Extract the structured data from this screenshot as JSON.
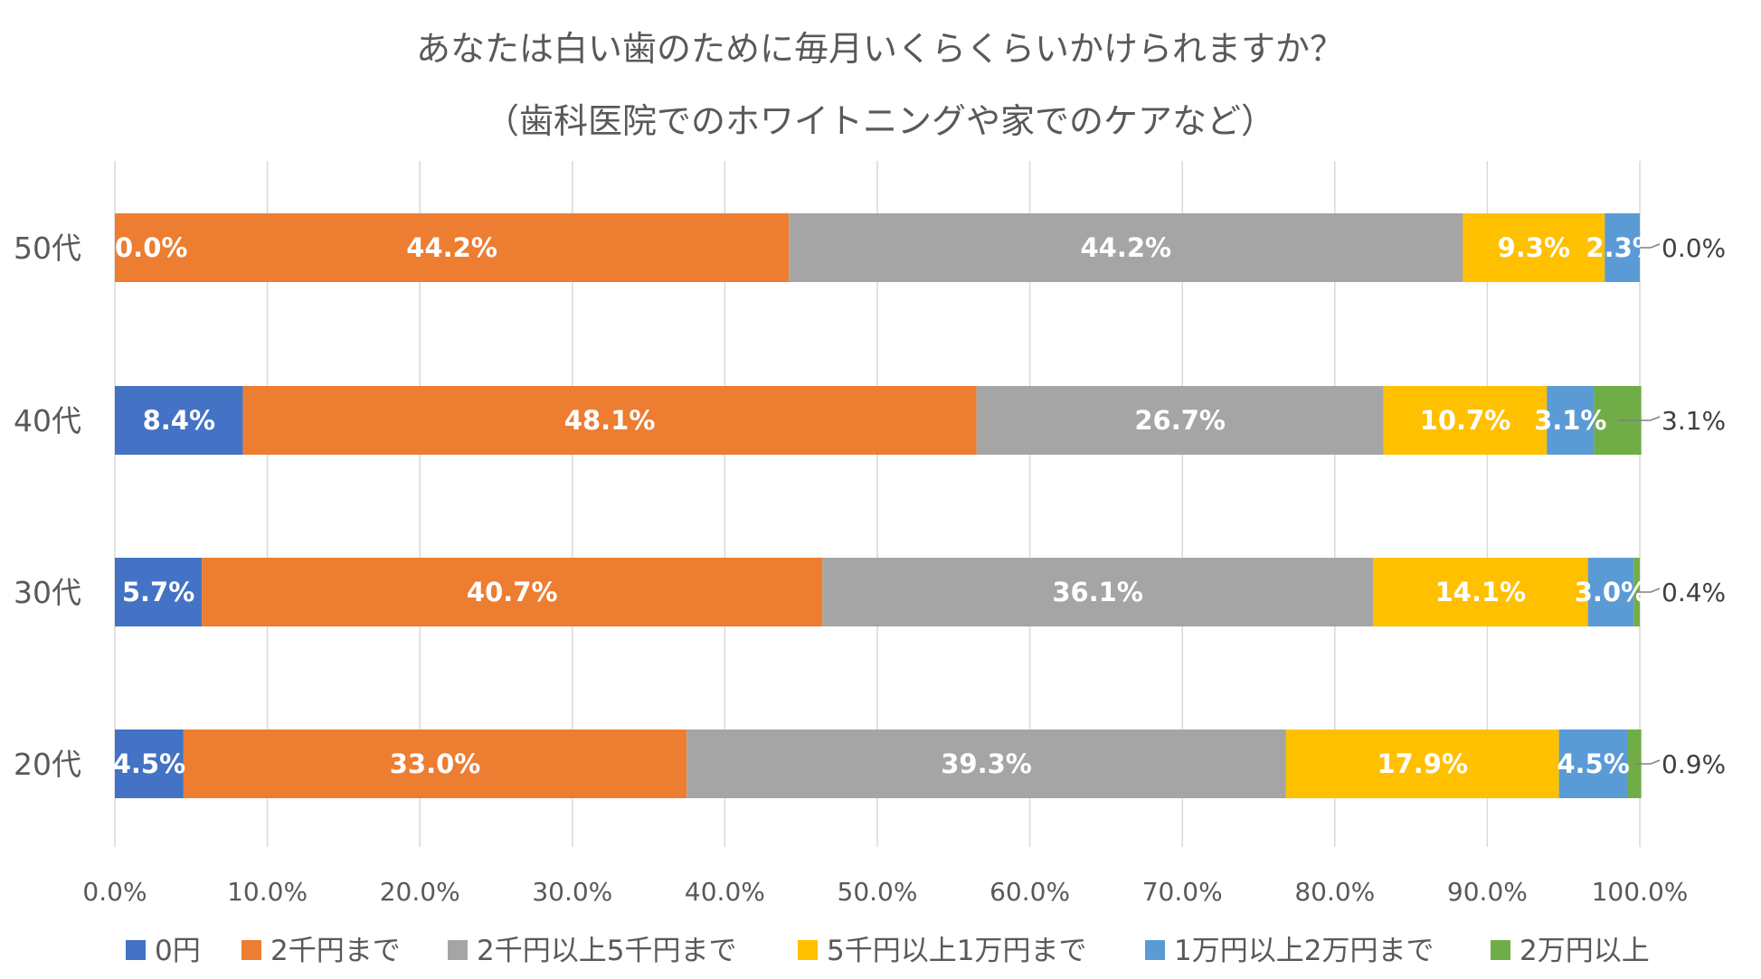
{
  "chart_data": {
    "type": "stacked-bar-horizontal-100",
    "title": "あなたは白い歯のために毎月いくらくらいかけられますか？",
    "subtitle": "（歯科医院でのホワイトニングや家でのケアなど）",
    "categories": [
      "20代",
      "30代",
      "40代",
      "50代"
    ],
    "series": [
      {
        "name": "0円",
        "color": "#4472C4",
        "values": [
          4.5,
          5.7,
          8.4,
          0.0
        ],
        "labels": [
          "4.5%",
          "5.7%",
          "8.4%",
          "0.0%"
        ]
      },
      {
        "name": "2千円まで",
        "color": "#ED7D31",
        "values": [
          33.0,
          40.7,
          48.1,
          44.2
        ],
        "labels": [
          "33.0%",
          "40.7%",
          "48.1%",
          "44.2%"
        ]
      },
      {
        "name": "2千円以上5千円まで",
        "color": "#A5A5A5",
        "values": [
          39.3,
          36.1,
          26.7,
          44.2
        ],
        "labels": [
          "39.3%",
          "36.1%",
          "26.7%",
          "44.2%"
        ]
      },
      {
        "name": "5千円以上1万円まで",
        "color": "#FFC000",
        "values": [
          17.9,
          14.1,
          10.7,
          9.3
        ],
        "labels": [
          "17.9%",
          "14.1%",
          "10.7%",
          "9.3%"
        ]
      },
      {
        "name": "1万円以上2万円まで",
        "color": "#5B9BD5",
        "values": [
          4.5,
          3.0,
          3.1,
          2.3
        ],
        "labels": [
          "4.5%",
          "3.0%",
          "3.1%",
          "2.3%"
        ]
      },
      {
        "name": "2万円以上",
        "color": "#70AD47",
        "values": [
          0.9,
          0.4,
          3.1,
          0.0
        ],
        "labels": [
          "0.9%",
          "0.4%",
          "3.1%",
          "0.0%"
        ]
      }
    ],
    "xlim": [
      0,
      100
    ],
    "xticks": [
      "0.0%",
      "10.0%",
      "20.0%",
      "30.0%",
      "40.0%",
      "50.0%",
      "60.0%",
      "70.0%",
      "80.0%",
      "90.0%",
      "100.0%"
    ],
    "grid": true,
    "legend": "bottom",
    "xlabel": "",
    "ylabel": ""
  }
}
